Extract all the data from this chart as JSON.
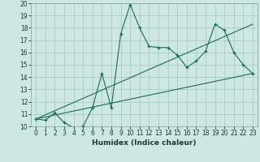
{
  "xlabel": "Humidex (Indice chaleur)",
  "ylabel": "",
  "background_color": "#cce8e0",
  "grid_color": "#aaccc4",
  "line_color": "#1a6b5a",
  "xlim": [
    -0.5,
    23.5
  ],
  "ylim": [
    10,
    20
  ],
  "xticks": [
    0,
    1,
    2,
    3,
    4,
    5,
    6,
    7,
    8,
    9,
    10,
    11,
    12,
    13,
    14,
    15,
    16,
    17,
    18,
    19,
    20,
    21,
    22,
    23
  ],
  "yticks": [
    10,
    11,
    12,
    13,
    14,
    15,
    16,
    17,
    18,
    19,
    20
  ],
  "line1_x": [
    0,
    1,
    2,
    3,
    4,
    5,
    6,
    7,
    8,
    9,
    10,
    11,
    12,
    13,
    14,
    15,
    16,
    17,
    18,
    19,
    20,
    21,
    22,
    23
  ],
  "line1_y": [
    10.6,
    10.5,
    11.1,
    10.3,
    9.9,
    10.0,
    11.5,
    14.3,
    11.5,
    17.5,
    19.9,
    18.0,
    16.5,
    16.4,
    16.4,
    15.8,
    14.8,
    15.3,
    16.1,
    18.3,
    17.8,
    16.0,
    15.0,
    14.3
  ],
  "line2_x": [
    0,
    23
  ],
  "line2_y": [
    10.6,
    14.3
  ],
  "line3_x": [
    0,
    23
  ],
  "line3_y": [
    10.6,
    18.3
  ],
  "tick_fontsize": 5.5,
  "xlabel_fontsize": 6.5
}
